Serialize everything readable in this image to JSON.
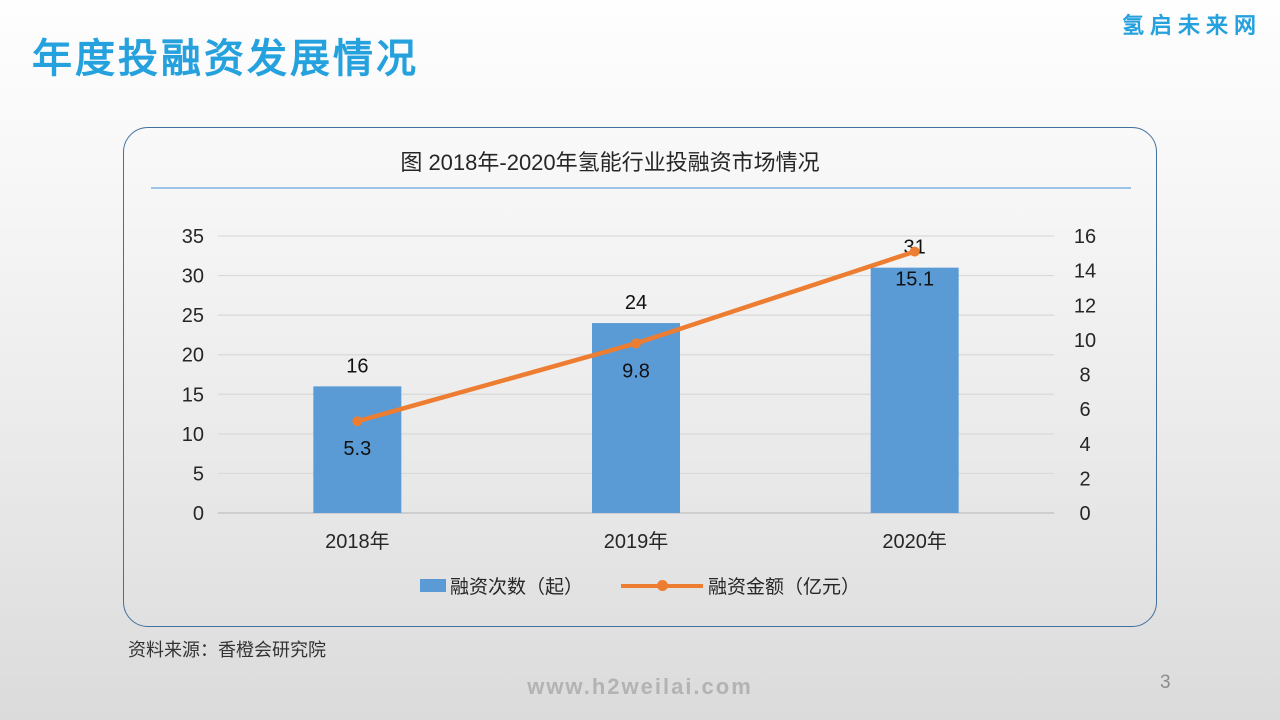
{
  "header": {
    "title": "年度投融资发展情况",
    "logo": "氢启未来网"
  },
  "chart_data": {
    "type": "combo-bar-line",
    "title": "图 2018年-2020年氢能行业投融资市场情况",
    "categories": [
      "2018年",
      "2019年",
      "2020年"
    ],
    "series": [
      {
        "name": "融资次数（起）",
        "type": "bar",
        "axis": "left",
        "values": [
          16,
          24,
          31
        ],
        "color": "#5B9BD5"
      },
      {
        "name": "融资金额（亿元）",
        "type": "line",
        "axis": "right",
        "values": [
          5.3,
          9.8,
          15.1
        ],
        "color": "#ED7D31"
      }
    ],
    "left_axis": {
      "min": 0,
      "max": 35,
      "step": 5,
      "ticks": [
        35,
        30,
        25,
        20,
        15,
        10,
        5,
        0
      ]
    },
    "right_axis": {
      "min": 0,
      "max": 16,
      "step": 2,
      "ticks": [
        16,
        14,
        12,
        10,
        8,
        6,
        4,
        2,
        0
      ]
    },
    "grid": true,
    "data_labels": true,
    "legend_position": "bottom"
  },
  "source_note": "资料来源：香橙会研究院",
  "footer": {
    "url": "www.h2weilai.com",
    "page_number": "3"
  },
  "colors": {
    "accent_blue": "#25A1DE",
    "bar_blue": "#5B9BD5",
    "line_orange": "#ED7D31",
    "card_border": "#41719C",
    "title_separator": "#9DC3E6",
    "gridline": "#D9D9D9",
    "axis_line": "#BFBFBF",
    "axis_text": "#262626",
    "footer_gray": "#B3B3B3"
  }
}
